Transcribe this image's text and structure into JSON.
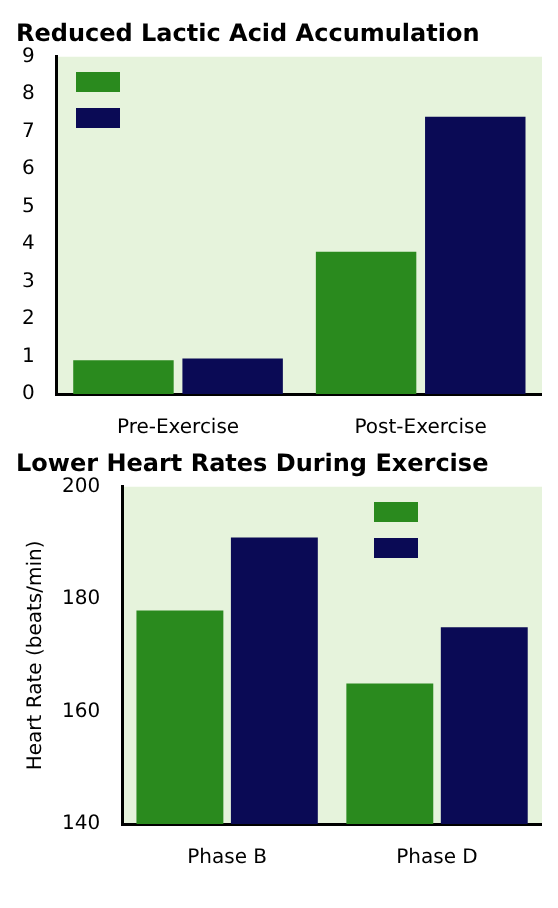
{
  "chart_data": [
    {
      "type": "bar",
      "title": "Reduced Lactic Acid Accumulation",
      "categories": [
        "Pre-Exercise",
        "Post-Exercise"
      ],
      "series": [
        {
          "color": "#2a8a1e",
          "values": [
            0.9,
            3.8
          ]
        },
        {
          "color": "#0a0a55",
          "values": [
            0.95,
            7.4
          ]
        }
      ],
      "ylim": [
        0,
        9
      ],
      "yticks": [
        0,
        1,
        2,
        3,
        4,
        5,
        6,
        7,
        8,
        9
      ]
    },
    {
      "type": "bar",
      "title": "Lower Heart Rates During Exercise",
      "ylabel": "Heart Rate (beats/min)",
      "categories": [
        "Phase B",
        "Phase D"
      ],
      "series": [
        {
          "color": "#2a8a1e",
          "values": [
            178,
            165
          ]
        },
        {
          "color": "#0a0a55",
          "values": [
            191,
            175
          ]
        }
      ],
      "ylim": [
        140,
        200
      ],
      "yticks": [
        140,
        160,
        180,
        200
      ]
    }
  ]
}
